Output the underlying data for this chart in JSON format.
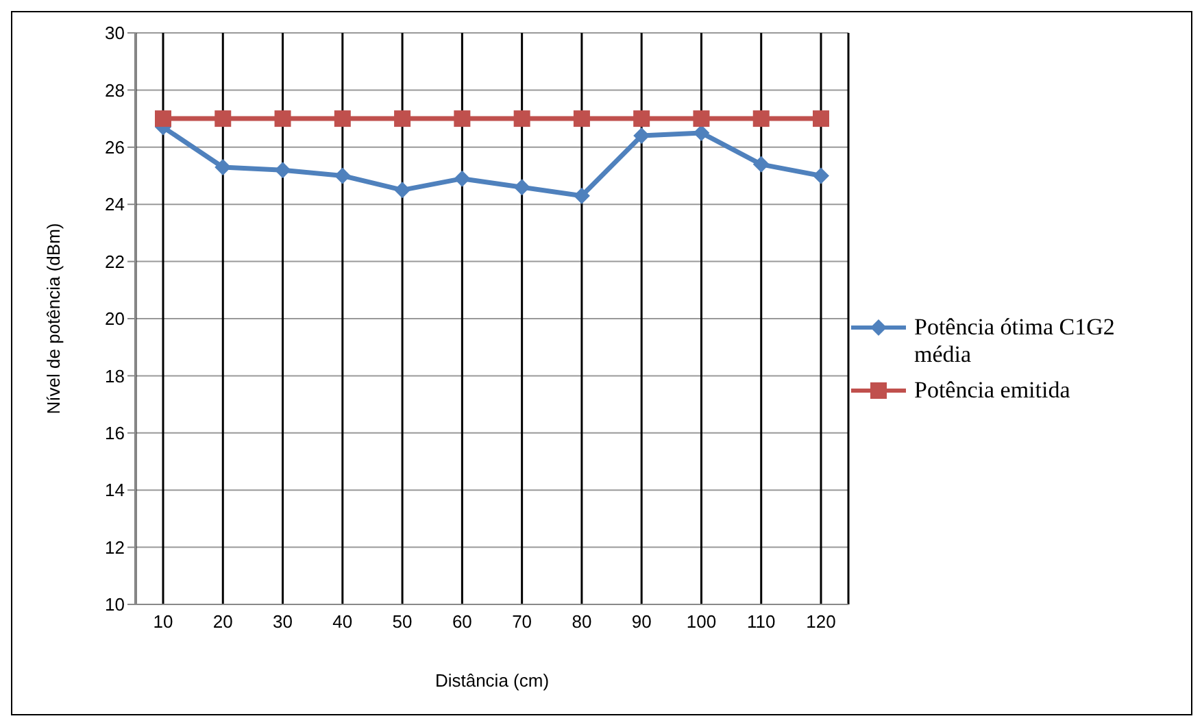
{
  "chart_data": {
    "type": "line",
    "xlabel": "Distância  (cm)",
    "ylabel": "Nível de potência (dBm)",
    "categories": [
      "10",
      "20",
      "30",
      "40",
      "50",
      "60",
      "70",
      "80",
      "90",
      "100",
      "110",
      "120"
    ],
    "series": [
      {
        "name": "Potência ótima C1G2 média",
        "color": "#4f81bd",
        "marker": "diamond",
        "values": [
          26.7,
          25.3,
          25.2,
          25.0,
          24.5,
          24.9,
          24.6,
          24.3,
          26.4,
          26.5,
          25.4,
          25.0
        ]
      },
      {
        "name": "Potência emitida",
        "color": "#c0504d",
        "marker": "square",
        "values": [
          27,
          27,
          27,
          27,
          27,
          27,
          27,
          27,
          27,
          27,
          27,
          27
        ]
      }
    ],
    "ylim": [
      10,
      30
    ],
    "yticks": [
      10,
      12,
      14,
      16,
      18,
      20,
      22,
      24,
      26,
      28,
      30
    ],
    "grid": true,
    "legend": "right",
    "line_style": "solid"
  }
}
